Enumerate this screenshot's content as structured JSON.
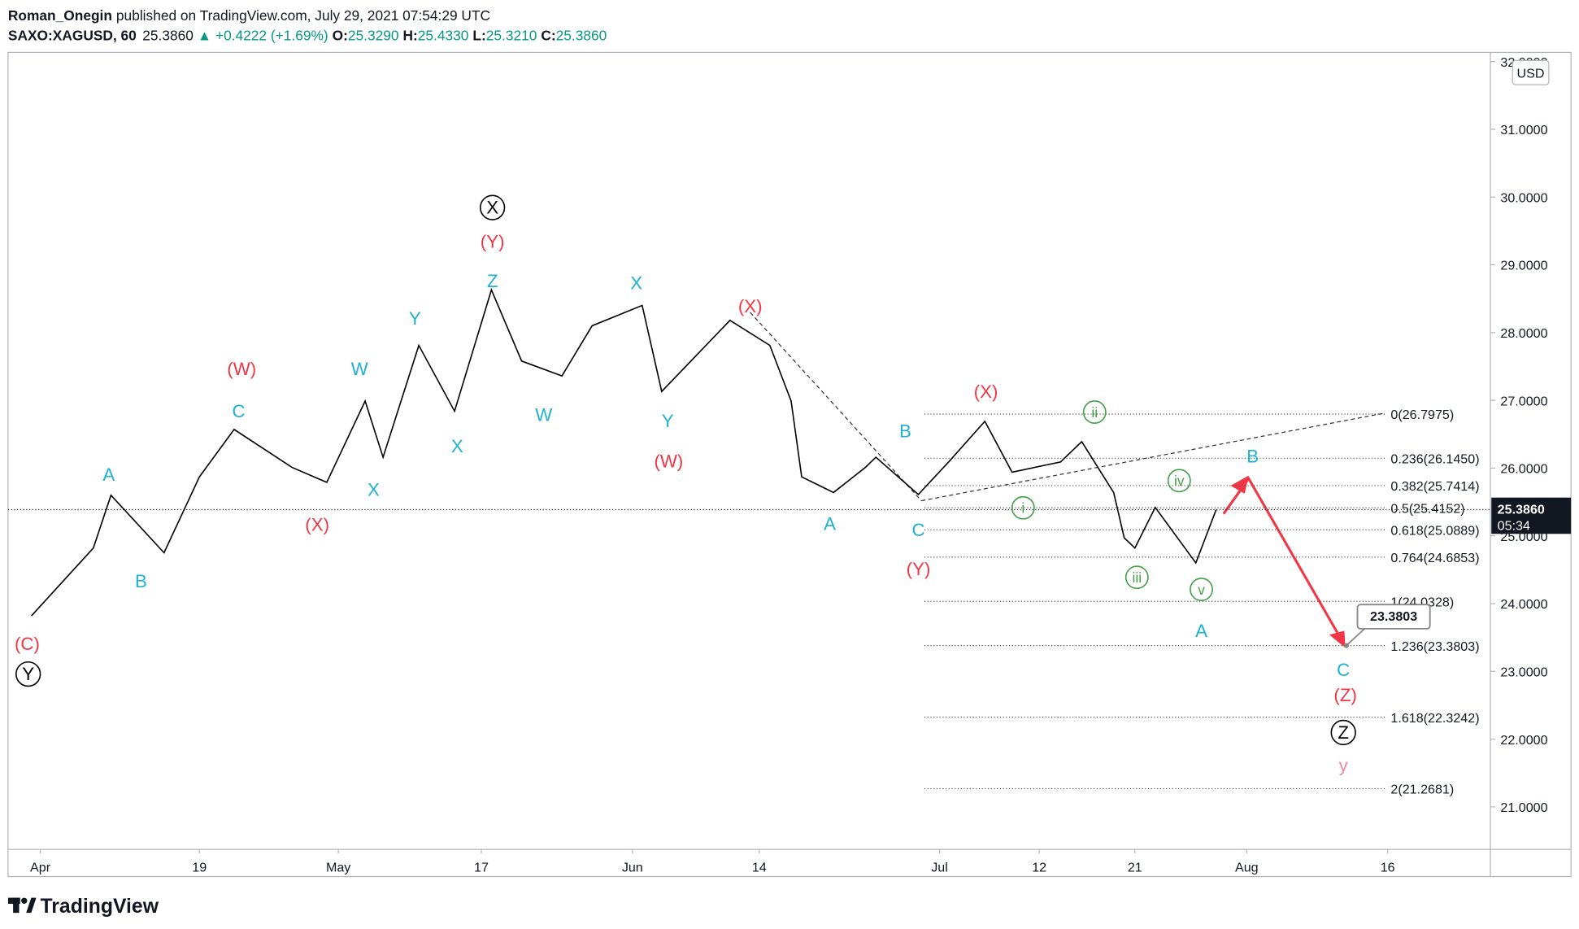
{
  "header": {
    "author": "Roman_Onegin",
    "published": "published on TradingView.com, July 29, 2021 07:54:29 UTC",
    "symbol": "SAXO:XAGUSD, 60",
    "arrow": "▲",
    "change": "+0.4222 (+1.69%)",
    "ohlc": [
      {
        "key": "O:",
        "value": "25.3290"
      },
      {
        "key": "H:",
        "value": "25.4330"
      },
      {
        "key": "L:",
        "value": "25.3210"
      },
      {
        "key": "C:",
        "value": "25.3860"
      }
    ]
  },
  "chart_data": {
    "type": "line",
    "color": "#000000",
    "x": [
      "Mar 31",
      "Apr 7",
      "Apr 9",
      "Apr 15",
      "Apr 19",
      "Apr 22",
      "Apr 27",
      "Apr 30",
      "May 4",
      "May 6",
      "May 10",
      "May 14",
      "May 18",
      "May 21",
      "May 25",
      "May 28",
      "Jun 2",
      "Jun 4",
      "Jun 8",
      "Jun 11",
      "Jun 15",
      "Jun 17",
      "Jun 18",
      "Jun 21",
      "Jun 24",
      "Jun 25",
      "Jun 29",
      "Jul 2",
      "Jul 6",
      "Jul 9",
      "Jul 14",
      "Jul 16",
      "Jul 19",
      "Jul 20",
      "Jul 21",
      "Jul 23",
      "Jul 27",
      "Jul 29"
    ],
    "values": [
      23.82,
      24.82,
      25.6,
      24.75,
      25.87,
      26.57,
      26.01,
      25.79,
      26.99,
      26.16,
      27.81,
      26.84,
      28.63,
      27.58,
      27.36,
      28.1,
      28.4,
      27.13,
      27.73,
      28.18,
      27.81,
      26.99,
      25.87,
      25.64,
      26.01,
      26.16,
      25.61,
      26.09,
      26.69,
      25.94,
      26.09,
      26.39,
      25.64,
      24.97,
      24.82,
      25.42,
      24.6,
      25.386
    ],
    "ylim": [
      20.373,
      32.134
    ],
    "yticks": [
      {
        "value": 21,
        "label": "21.0000"
      },
      {
        "value": 22,
        "label": "22.0000"
      },
      {
        "value": 23,
        "label": "23.0000"
      },
      {
        "value": 24,
        "label": "24.0000"
      },
      {
        "value": 25,
        "label": "25.0000"
      },
      {
        "value": 26,
        "label": "26.0000"
      },
      {
        "value": 27,
        "label": "27.0000"
      },
      {
        "value": 28,
        "label": "28.0000"
      },
      {
        "value": 29,
        "label": "29.0000"
      },
      {
        "value": 30,
        "label": "30.0000"
      },
      {
        "value": 31,
        "label": "31.0000"
      },
      {
        "value": 32,
        "label": "32.0000"
      }
    ],
    "xticks": [
      {
        "value": "Apr 1",
        "label": "Apr"
      },
      {
        "value": "Apr 19",
        "label": "19"
      },
      {
        "value": "May 1",
        "label": "May"
      },
      {
        "value": "May 17",
        "label": "17"
      },
      {
        "value": "Jun 1",
        "label": "Jun"
      },
      {
        "value": "Jun 14",
        "label": "14"
      },
      {
        "value": "Jul 1",
        "label": "Jul"
      },
      {
        "value": "Jul 12",
        "label": "12"
      },
      {
        "value": "Jul 21",
        "label": "21"
      },
      {
        "value": "Aug 1",
        "label": "Aug"
      },
      {
        "value": "Aug 16",
        "label": "16"
      }
    ],
    "currency": "USD",
    "last_price": {
      "value": 25.386,
      "label": "25.3860"
    },
    "countdown": "05:34",
    "fib_levels": [
      {
        "value": 26.7975,
        "label": "0(26.7975)"
      },
      {
        "value": 26.145,
        "label": "0.236(26.1450)"
      },
      {
        "value": 25.7414,
        "label": "0.382(25.7414)"
      },
      {
        "value": 25.4152,
        "label": "0.5(25.4152)"
      },
      {
        "value": 25.0889,
        "label": "0.618(25.0889)"
      },
      {
        "value": 24.6853,
        "label": "0.764(24.6853)"
      },
      {
        "value": 24.0328,
        "label": "1(24.0328)"
      },
      {
        "value": 23.3803,
        "label": "1.236(23.3803)"
      },
      {
        "value": 22.3242,
        "label": "1.618(22.3242)"
      },
      {
        "value": 21.2681,
        "label": "2(21.2681)"
      }
    ],
    "target": {
      "value": 23.3803,
      "label": "23.3803"
    },
    "annotations": [
      {
        "text": "(C)",
        "color": "#f23645",
        "circle": false
      },
      {
        "text": "Y",
        "color": "#000000",
        "circle": true
      },
      {
        "text": "A",
        "color": "#1fb2cf",
        "circle": false
      },
      {
        "text": "B",
        "color": "#1fb2cf",
        "circle": false
      },
      {
        "text": "C",
        "color": "#1fb2cf",
        "circle": false
      },
      {
        "text": "(W)",
        "color": "#f23645",
        "circle": false
      },
      {
        "text": "(X)",
        "color": "#f23645",
        "circle": false
      },
      {
        "text": "W",
        "color": "#1fb2cf",
        "circle": false
      },
      {
        "text": "X",
        "color": "#1fb2cf",
        "circle": false
      },
      {
        "text": "Y",
        "color": "#1fb2cf",
        "circle": false
      },
      {
        "text": "X",
        "color": "#1fb2cf",
        "circle": false
      },
      {
        "text": "Z",
        "color": "#1fb2cf",
        "circle": false
      },
      {
        "text": "(Y)",
        "color": "#f23645",
        "circle": false
      },
      {
        "text": "X",
        "color": "#000000",
        "circle": true
      },
      {
        "text": "W",
        "color": "#1fb2cf",
        "circle": false
      },
      {
        "text": "X",
        "color": "#1fb2cf",
        "circle": false
      },
      {
        "text": "Y",
        "color": "#1fb2cf",
        "circle": false
      },
      {
        "text": "(W)",
        "color": "#f23645",
        "circle": false
      },
      {
        "text": "(X)",
        "color": "#f23645",
        "circle": false
      },
      {
        "text": "A",
        "color": "#1fb2cf",
        "circle": false
      },
      {
        "text": "B",
        "color": "#1fb2cf",
        "circle": false
      },
      {
        "text": "C",
        "color": "#1fb2cf",
        "circle": false
      },
      {
        "text": "(Y)",
        "color": "#f23645",
        "circle": false
      },
      {
        "text": "(X)",
        "color": "#f23645",
        "circle": false
      },
      {
        "text": "ii",
        "color": "#43a047",
        "circle": true
      },
      {
        "text": "i",
        "color": "#43a047",
        "circle": true
      },
      {
        "text": "iii",
        "color": "#43a047",
        "circle": true
      },
      {
        "text": "iv",
        "color": "#43a047",
        "circle": true
      },
      {
        "text": "v",
        "color": "#43a047",
        "circle": true
      },
      {
        "text": "A",
        "color": "#1fb2cf",
        "circle": false
      },
      {
        "text": "B",
        "color": "#1fb2cf",
        "circle": false
      },
      {
        "text": "C",
        "color": "#1fb2cf",
        "circle": false
      },
      {
        "text": "(Z)",
        "color": "#f23645",
        "circle": false
      },
      {
        "text": "Z",
        "color": "#000000",
        "circle": true
      },
      {
        "text": "y",
        "color": "#f28b9b",
        "circle": false
      }
    ]
  },
  "footer": {
    "brand": "TradingView"
  }
}
